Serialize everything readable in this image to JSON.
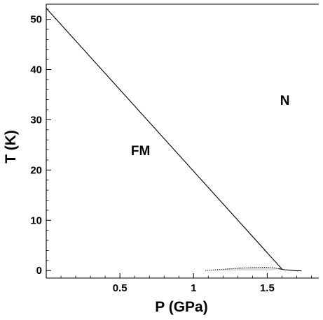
{
  "chart_data": {
    "type": "line",
    "xlabel": "P (GPa)",
    "ylabel": "T (K)",
    "xlim": [
      0,
      1.85
    ],
    "ylim": [
      -1.5,
      53
    ],
    "x_ticks": [
      0.5,
      1,
      1.5
    ],
    "x_tick_labels": [
      "0.5",
      "1",
      "1.5"
    ],
    "y_ticks": [
      0,
      10,
      20,
      30,
      40,
      50
    ],
    "y_tick_labels": [
      "0",
      "10",
      "20",
      "30",
      "40",
      "50"
    ],
    "grid": false,
    "series": [
      {
        "style": "solid",
        "x": [
          0,
          1.6
        ],
        "y": [
          52.2,
          0.3
        ]
      },
      {
        "style": "dotted",
        "x": [
          1.08,
          1.2,
          1.3,
          1.4,
          1.47,
          1.53,
          1.58
        ],
        "y": [
          0.0,
          0.25,
          0.45,
          0.6,
          0.65,
          0.6,
          0.35
        ]
      },
      {
        "style": "thick",
        "x": [
          1.58,
          1.62,
          1.66,
          1.7,
          1.73
        ],
        "y": [
          0.35,
          0.15,
          0.05,
          -0.05,
          -0.05
        ]
      }
    ],
    "shaded_region": {
      "color": "#dcdcdc",
      "x": [
        1.08,
        1.2,
        1.3,
        1.4,
        1.47,
        1.53,
        1.58
      ],
      "y_upper": [
        0.0,
        0.25,
        0.45,
        0.6,
        0.65,
        0.6,
        0.35
      ],
      "y_lower": [
        0.0,
        0.0,
        0.0,
        0.0,
        0.0,
        0.0,
        0.35
      ]
    },
    "annotations": [
      {
        "text": "N",
        "x": 1.62,
        "y": 33
      },
      {
        "text": "FM",
        "x": 0.64,
        "y": 23
      }
    ]
  }
}
